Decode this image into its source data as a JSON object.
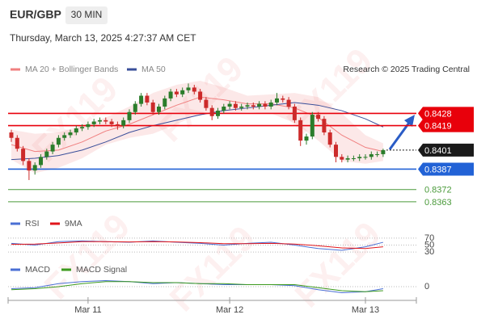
{
  "header": {
    "symbol": "EUR/GBP",
    "timeframe": "30 MIN",
    "datetime": "Thursday, March 13, 2025 4:27:37 AM CET",
    "copyright": "Research © 2025 Trading Central",
    "watermark": "FX119"
  },
  "chart_data": [
    {
      "type": "candlestick",
      "ylim": [
        0.8357,
        0.8452
      ],
      "up_color": "#2b7d2b",
      "down_color": "#cc2a2a",
      "ohlc": [
        [
          0.8414,
          0.8416,
          0.8407,
          0.841
        ],
        [
          0.841,
          0.8412,
          0.84,
          0.8402
        ],
        [
          0.8402,
          0.8404,
          0.839,
          0.8393
        ],
        [
          0.8393,
          0.8395,
          0.8379,
          0.8386
        ],
        [
          0.8386,
          0.8392,
          0.8383,
          0.839
        ],
        [
          0.839,
          0.8398,
          0.8388,
          0.8396
        ],
        [
          0.8396,
          0.8402,
          0.8394,
          0.84
        ],
        [
          0.84,
          0.8407,
          0.8398,
          0.8405
        ],
        [
          0.8405,
          0.8412,
          0.8403,
          0.841
        ],
        [
          0.841,
          0.8414,
          0.8408,
          0.8412
        ],
        [
          0.8412,
          0.8416,
          0.841,
          0.8414
        ],
        [
          0.8414,
          0.8419,
          0.8412,
          0.8417
        ],
        [
          0.8417,
          0.842,
          0.8415,
          0.8418
        ],
        [
          0.8418,
          0.8422,
          0.8416,
          0.842
        ],
        [
          0.842,
          0.8424,
          0.8418,
          0.8422
        ],
        [
          0.8422,
          0.8425,
          0.842,
          0.8423
        ],
        [
          0.8423,
          0.8425,
          0.842,
          0.8422
        ],
        [
          0.8422,
          0.8424,
          0.8418,
          0.842
        ],
        [
          0.842,
          0.8422,
          0.8416,
          0.8419
        ],
        [
          0.8419,
          0.8425,
          0.8417,
          0.8423
        ],
        [
          0.8423,
          0.8431,
          0.8421,
          0.8429
        ],
        [
          0.8429,
          0.8437,
          0.8427,
          0.8435
        ],
        [
          0.8435,
          0.8443,
          0.8433,
          0.8441
        ],
        [
          0.8441,
          0.8443,
          0.8434,
          0.8436
        ],
        [
          0.8436,
          0.8438,
          0.8427,
          0.8429
        ],
        [
          0.8429,
          0.8435,
          0.8427,
          0.8433
        ],
        [
          0.8433,
          0.8441,
          0.8431,
          0.8439
        ],
        [
          0.8439,
          0.8446,
          0.8437,
          0.8444
        ],
        [
          0.8444,
          0.8446,
          0.844,
          0.8442
        ],
        [
          0.8442,
          0.8447,
          0.844,
          0.8445
        ],
        [
          0.8445,
          0.845,
          0.8443,
          0.8447
        ],
        [
          0.8447,
          0.8449,
          0.8442,
          0.8444
        ],
        [
          0.8444,
          0.8446,
          0.8436,
          0.8438
        ],
        [
          0.8438,
          0.844,
          0.843,
          0.8432
        ],
        [
          0.8432,
          0.8434,
          0.8423,
          0.8426
        ],
        [
          0.8426,
          0.8432,
          0.8424,
          0.843
        ],
        [
          0.843,
          0.8435,
          0.8428,
          0.8433
        ],
        [
          0.8433,
          0.8437,
          0.8431,
          0.8435
        ],
        [
          0.8435,
          0.8437,
          0.843,
          0.8432
        ],
        [
          0.8432,
          0.8435,
          0.843,
          0.8433
        ],
        [
          0.8433,
          0.8436,
          0.8431,
          0.8434
        ],
        [
          0.8434,
          0.8436,
          0.8431,
          0.8433
        ],
        [
          0.8433,
          0.8437,
          0.8431,
          0.8435
        ],
        [
          0.8435,
          0.8437,
          0.8431,
          0.8433
        ],
        [
          0.8433,
          0.8438,
          0.8431,
          0.8436
        ],
        [
          0.8436,
          0.8443,
          0.8434,
          0.8439
        ],
        [
          0.8439,
          0.8441,
          0.8436,
          0.8438
        ],
        [
          0.8438,
          0.844,
          0.8431,
          0.8433
        ],
        [
          0.8433,
          0.8435,
          0.8421,
          0.8423
        ],
        [
          0.8423,
          0.8425,
          0.8404,
          0.8408
        ],
        [
          0.8408,
          0.8413,
          0.8405,
          0.8411
        ],
        [
          0.8411,
          0.8429,
          0.8409,
          0.8427
        ],
        [
          0.8427,
          0.8429,
          0.8422,
          0.8424
        ],
        [
          0.8424,
          0.8426,
          0.8412,
          0.8414
        ],
        [
          0.8414,
          0.8416,
          0.8403,
          0.8405
        ],
        [
          0.8405,
          0.8407,
          0.8392,
          0.8396
        ],
        [
          0.8396,
          0.8398,
          0.8392,
          0.8394
        ],
        [
          0.8394,
          0.8397,
          0.8392,
          0.8395
        ],
        [
          0.8395,
          0.8397,
          0.8393,
          0.8395
        ],
        [
          0.8395,
          0.8398,
          0.8393,
          0.8396
        ],
        [
          0.8396,
          0.8398,
          0.8394,
          0.8396
        ],
        [
          0.8396,
          0.84,
          0.8394,
          0.8398
        ],
        [
          0.8398,
          0.84,
          0.8396,
          0.8398
        ],
        [
          0.8398,
          0.8402,
          0.8396,
          0.8401
        ]
      ],
      "overlay_x": [
        0,
        4,
        8,
        12,
        16,
        20,
        24,
        28,
        32,
        36,
        40,
        44,
        48,
        52,
        56,
        60,
        63
      ],
      "overlays": [
        {
          "name": "MA 20 + Bollinger Bands",
          "color": "#f08080",
          "values": [
            0.8405,
            0.84,
            0.8401,
            0.8407,
            0.8415,
            0.842,
            0.8427,
            0.8434,
            0.844,
            0.8438,
            0.8435,
            0.8435,
            0.8432,
            0.8425,
            0.8412,
            0.8403,
            0.84
          ],
          "upper": [
            0.8416,
            0.8413,
            0.8414,
            0.8419,
            0.8425,
            0.8433,
            0.8443,
            0.8449,
            0.8452,
            0.8447,
            0.8441,
            0.8442,
            0.8443,
            0.844,
            0.8428,
            0.8412,
            0.8406
          ],
          "lower": [
            0.8394,
            0.8384,
            0.8388,
            0.8395,
            0.8405,
            0.841,
            0.8413,
            0.842,
            0.8428,
            0.8428,
            0.8429,
            0.8428,
            0.8421,
            0.8408,
            0.8393,
            0.8391,
            0.8393
          ]
        },
        {
          "name": "MA 50",
          "color": "#3a4f9a",
          "values": [
            0.8394,
            0.8395,
            0.8397,
            0.8401,
            0.8407,
            0.8414,
            0.8419,
            0.8423,
            0.8427,
            0.843,
            0.8432,
            0.8434,
            0.8436,
            0.8434,
            0.843,
            0.8424,
            0.8418
          ]
        }
      ],
      "levels": [
        {
          "value": 0.8428,
          "color": "#e8000b",
          "boxed": true
        },
        {
          "value": 0.8419,
          "color": "#e8000b",
          "boxed": true
        },
        {
          "value": 0.8387,
          "color": "#2262d6",
          "boxed": true
        },
        {
          "value": 0.8372,
          "color": "#4a9a3a",
          "boxed": false
        },
        {
          "value": 0.8363,
          "color": "#4a9a3a",
          "boxed": false
        }
      ],
      "current": {
        "value": 0.8401,
        "color": "#1a1a1a"
      },
      "x_labels": [
        {
          "index": 13,
          "label": "Mar 11"
        },
        {
          "index": 37,
          "label": "Mar 12"
        },
        {
          "index": 60,
          "label": "Mar 13"
        }
      ]
    },
    {
      "type": "line",
      "ylim": [
        0,
        100
      ],
      "yticks": [
        70,
        50,
        30
      ],
      "x": [
        0,
        4,
        8,
        12,
        16,
        20,
        24,
        28,
        32,
        36,
        40,
        44,
        48,
        52,
        56,
        60,
        63
      ],
      "series": [
        {
          "name": "RSI",
          "color": "#4a6fd4",
          "values": [
            55,
            50,
            60,
            62,
            60,
            58,
            62,
            58,
            55,
            50,
            55,
            58,
            50,
            40,
            35,
            45,
            58
          ]
        },
        {
          "name": "9MA",
          "color": "#e0151b",
          "values": [
            52,
            53,
            56,
            60,
            60,
            59,
            60,
            59,
            57,
            54,
            54,
            55,
            53,
            48,
            42,
            40,
            45
          ]
        }
      ]
    },
    {
      "type": "line",
      "ylim": [
        -0.0012,
        0.0012
      ],
      "yticks": [
        0
      ],
      "x": [
        0,
        4,
        8,
        12,
        16,
        20,
        24,
        28,
        32,
        36,
        40,
        44,
        48,
        52,
        56,
        60,
        63
      ],
      "series": [
        {
          "name": "MACD",
          "color": "#4a6fd4",
          "values": [
            -0.0002,
            -0.0001,
            0.0003,
            0.0005,
            0.0006,
            0.0005,
            0.0003,
            0.0004,
            0.0003,
            0.0002,
            0.0002,
            0.0002,
            0.0001,
            -0.0003,
            -0.0006,
            -0.0005,
            -0.0002
          ]
        },
        {
          "name": "MACD Signal",
          "color": "#3c9a1e",
          "values": [
            -0.0003,
            -0.0002,
            0.0,
            0.0003,
            0.0005,
            0.0005,
            0.0004,
            0.0004,
            0.0003,
            0.0003,
            0.0002,
            0.0002,
            0.0002,
            -0.0001,
            -0.0004,
            -0.0005,
            -0.0004
          ]
        }
      ]
    }
  ]
}
